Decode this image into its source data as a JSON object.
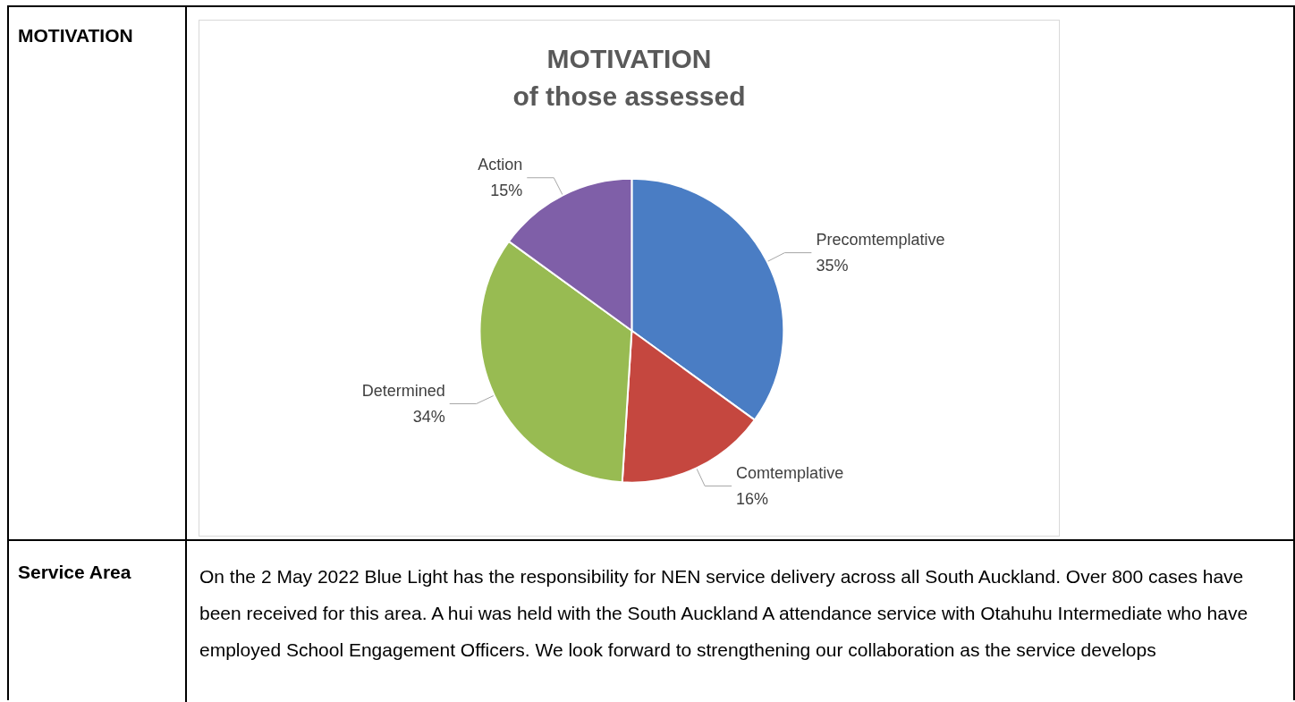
{
  "chart_data": {
    "type": "pie",
    "title": "MOTIVATION",
    "subtitle": "of those assessed",
    "categories": [
      "Precomtemplative",
      "Comtemplative",
      "Determined",
      "Action"
    ],
    "values": [
      35,
      16,
      34,
      15
    ],
    "value_labels": [
      "35%",
      "16%",
      "34%",
      "15%"
    ],
    "colors": [
      "#4a7dc4",
      "#c5473f",
      "#98bb52",
      "#7f5fa8"
    ],
    "annotations": [
      "MOTIVATION",
      "Service Area",
      "On the 2 May 2022 Blue Light has the responsibility for NEN service delivery across all South Auckland. Over 800 cases have been received for this area. A hui was held with the South Auckland A attendance service with Otahuhu Intermediate who have employed School Engagement Officers. We look forward to strengthening our collaboration as the service develops"
    ]
  }
}
